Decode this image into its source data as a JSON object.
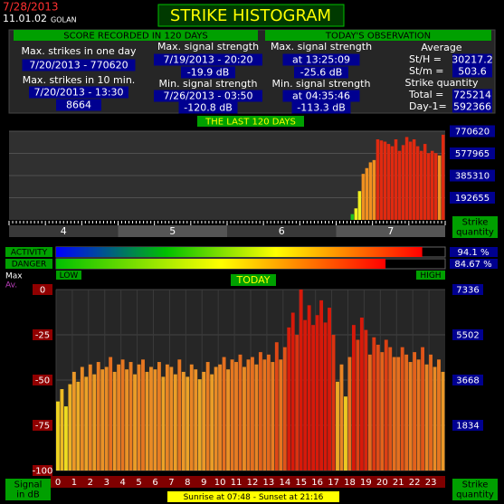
{
  "header": {
    "date": "7/28/2013",
    "time": "11.01.02",
    "location": "GOLAN",
    "title": "STRIKE HISTOGRAM"
  },
  "score": {
    "title": "SCORE RECORDED IN 120 DAYS",
    "col1": [
      "Max. strikes in one day",
      "7/20/2013 - 770620",
      "Max. strikes in 10 min.",
      "7/20/2013 - 13:30",
      "8664"
    ],
    "col2": [
      "Max. signal strength",
      "7/19/2013 - 20:20",
      "-19.9 dB",
      "Min. signal strength",
      "7/26/2013 - 03:50",
      "-120.8 dB"
    ]
  },
  "today_obs": {
    "title": "TODAY'S OBSERVATION",
    "col3": [
      "Max. signal strength",
      "at 13:25:09",
      "-25.6 dB",
      "Min. signal strength",
      "at 04:35:46",
      "-113.3 dB"
    ],
    "col4": [
      "Average",
      "St/H =",
      "30217.2",
      "St/m =",
      "503.6",
      "Strike quantity",
      "Total  =",
      "725214",
      "Day-1=",
      "592366"
    ]
  },
  "last_days": {
    "type": "bar",
    "title": "THE LAST 120 DAYS",
    "months": [
      "4",
      "5",
      "6",
      "7"
    ],
    "values": [
      50000,
      100000,
      250000,
      400000,
      450000,
      500000,
      520000,
      700000,
      690000,
      680000,
      660000,
      640000,
      700000,
      600000,
      650000,
      720000,
      680000,
      700000,
      640000,
      600000,
      660000,
      580000,
      600000,
      580000,
      560000,
      740000
    ],
    "ylim": [
      0,
      770620
    ],
    "yticks": [
      192655,
      385310,
      577965,
      770620
    ],
    "axis_label": [
      "Strike",
      "quantity"
    ]
  },
  "gauges": {
    "labels": [
      "ACTIVITY",
      "DANGER"
    ],
    "values": [
      94.1,
      84.67
    ],
    "value_labels": [
      "94.1 %",
      "84.67 %"
    ],
    "low": "LOW",
    "high": "HIGH"
  },
  "today": {
    "type": "bar",
    "title": "TODAY",
    "max_label": "Max",
    "av_label": "Av.",
    "ylim": [
      -100,
      0
    ],
    "yticks": [
      0,
      -25,
      -50,
      -75,
      -100
    ],
    "y2lim": [
      0,
      7336
    ],
    "y2ticks": [
      1834,
      3668,
      5502,
      7336
    ],
    "hours": [
      "0",
      "1",
      "2",
      "3",
      "4",
      "5",
      "6",
      "7",
      "8",
      "9",
      "10",
      "11",
      "12",
      "13",
      "14",
      "15",
      "16",
      "17",
      "18",
      "19",
      "20",
      "21",
      "22",
      "23"
    ],
    "values": [
      2800,
      3300,
      2600,
      3500,
      4000,
      3600,
      4200,
      3800,
      4300,
      3900,
      4400,
      4100,
      4200,
      4600,
      4000,
      4300,
      4500,
      4100,
      4400,
      3900,
      4300,
      4500,
      4000,
      4200,
      4100,
      4400,
      3800,
      4300,
      4200,
      3900,
      4500,
      4000,
      3800,
      4300,
      4100,
      3700,
      4000,
      4400,
      3900,
      4200,
      4300,
      4600,
      4100,
      4500,
      4400,
      4700,
      4200,
      4500,
      4600,
      4300,
      4800,
      4500,
      4700,
      4400,
      5200,
      4500,
      5000,
      5800,
      6400,
      5500,
      7336,
      6100,
      6700,
      5900,
      6300,
      6900,
      6000,
      6600,
      5500,
      3600,
      4300,
      3000,
      4600,
      5900,
      5300,
      6200,
      5700,
      4700,
      5400,
      5100,
      4800,
      5300,
      5000,
      4600,
      4600,
      5000,
      4700,
      4400,
      4800,
      4500,
      5000,
      4300,
      4700,
      4200,
      4500,
      4000
    ],
    "left_label": [
      "Signal",
      "in dB"
    ],
    "right_label": [
      "Strike",
      "quantity"
    ],
    "sun": "Sunrise at 07:48  -  Sunset at 21:16"
  }
}
